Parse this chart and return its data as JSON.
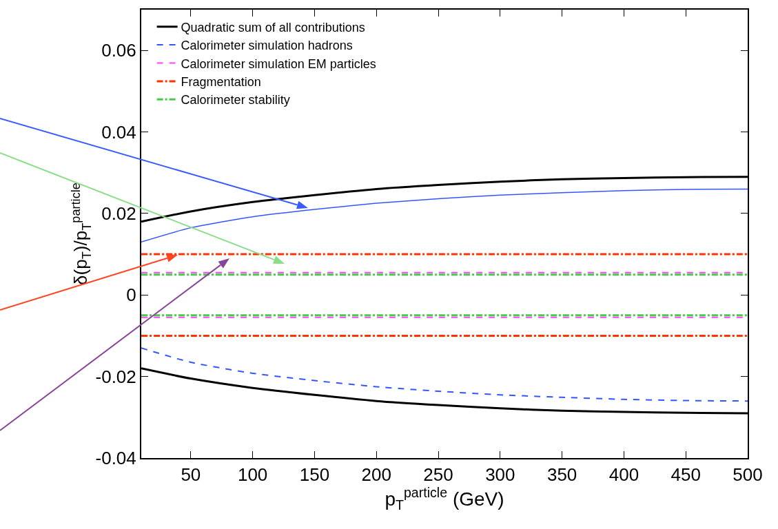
{
  "chart_data": {
    "type": "line",
    "xlabel": "p$_{T}$$^{particle}$ (GeV)",
    "ylabel": "δ(p$_{T}$)/p$_{T}$$^{particle}$",
    "x": [
      10,
      50,
      100,
      150,
      200,
      250,
      300,
      350,
      400,
      450,
      500
    ],
    "xlim": [
      10,
      500
    ],
    "xticks": [
      50,
      100,
      150,
      200,
      250,
      300,
      350,
      400,
      450,
      500
    ],
    "ylim": [
      -0.04,
      0.07
    ],
    "yticks": [
      -0.04,
      -0.02,
      0,
      0.02,
      0.04,
      0.06
    ],
    "grid": false,
    "legend": "top left",
    "marker": "none",
    "series": [
      {
        "name": "Quadratic sum of all contributions",
        "color": "#000000",
        "line_style": "solid",
        "values": [
          0.018,
          0.0205,
          0.0228,
          0.0245,
          0.026,
          0.027,
          0.0278,
          0.0284,
          0.0287,
          0.0289,
          0.029
        ]
      },
      {
        "name": "Calorimeter simulation hadrons",
        "color": "#3355ff",
        "line_style": "dashed",
        "values": [
          -0.013,
          -0.0165,
          -0.0192,
          -0.021,
          -0.0225,
          -0.0236,
          -0.0245,
          -0.0251,
          -0.0256,
          -0.0259,
          -0.026
        ]
      },
      {
        "name": "Calorimeter simulation EM particles",
        "color": "#ff44ff",
        "line_style": "dashed",
        "values": [
          0.0055,
          0.0055,
          0.0055,
          0.0055,
          0.0055,
          0.0055,
          0.0055,
          0.0055,
          0.0055,
          0.0055,
          0.0055
        ]
      },
      {
        "name": "Fragmentation",
        "color": "#ff3300",
        "line_style": "dashdot",
        "values": [
          0.01,
          0.01,
          0.01,
          0.01,
          0.01,
          0.01,
          0.01,
          0.01,
          0.01,
          0.01,
          0.01
        ]
      },
      {
        "name": "Calorimeter stability",
        "color": "#44cc44",
        "line_style": "dashdot",
        "values": [
          0.005,
          0.005,
          0.005,
          0.005,
          0.005,
          0.005,
          0.005,
          0.005,
          0.005,
          0.005,
          0.005
        ]
      },
      {
        "color": "#000000",
        "line_style": "solid",
        "values": [
          -0.018,
          -0.0205,
          -0.0228,
          -0.0245,
          -0.026,
          -0.027,
          -0.0278,
          -0.0284,
          -0.0287,
          -0.0289,
          -0.029
        ]
      },
      {
        "color": "#3355ff",
        "line_style": "solid",
        "values": [
          0.013,
          0.0165,
          0.0192,
          0.021,
          0.0225,
          0.0236,
          0.0245,
          0.0251,
          0.0256,
          0.0259,
          0.026
        ]
      },
      {
        "color": "#ff44ff",
        "line_style": "dashed",
        "values": [
          -0.0055,
          -0.0055,
          -0.0055,
          -0.0055,
          -0.0055,
          -0.0055,
          -0.0055,
          -0.0055,
          -0.0055,
          -0.0055,
          -0.0055
        ]
      },
      {
        "color": "#ff3300",
        "line_style": "dashdot",
        "values": [
          -0.01,
          -0.01,
          -0.01,
          -0.01,
          -0.01,
          -0.01,
          -0.01,
          -0.01,
          -0.01,
          -0.01,
          -0.01
        ]
      },
      {
        "color": "#44cc44",
        "line_style": "dashdot",
        "values": [
          -0.005,
          -0.005,
          -0.005,
          -0.005,
          -0.005,
          -0.005,
          -0.005,
          -0.005,
          -0.005,
          -0.005,
          -0.005
        ]
      }
    ]
  }
}
